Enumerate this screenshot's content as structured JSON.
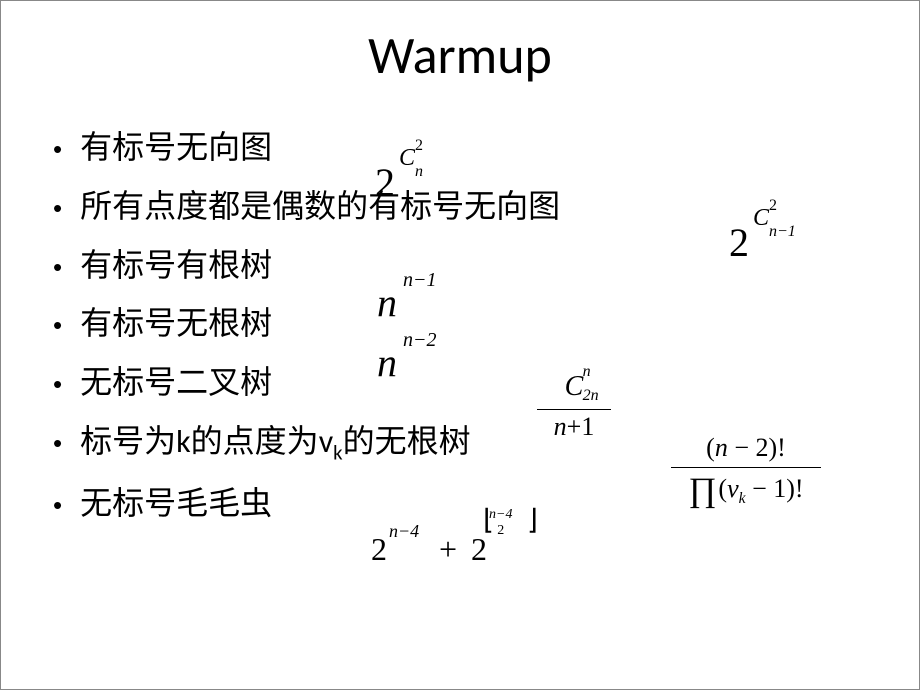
{
  "slide": {
    "title": "Warmup",
    "bullets": [
      {
        "text": "有标号无向图"
      },
      {
        "text": "所有点度都是偶数的有标号无向图"
      },
      {
        "text": "有标号有根树"
      },
      {
        "text": "有标号无根树"
      },
      {
        "text": "无标号二叉树"
      },
      {
        "text_prefix": "标号为",
        "k": "k",
        "text_mid": "的点度为",
        "v": "v",
        "vk_sub": "k",
        "text_suffix": "的无根树"
      },
      {
        "text": "无标号毛毛虫"
      }
    ],
    "formulas": {
      "f1": {
        "base": "2",
        "sup_sym": "C",
        "sub": "n",
        "sup": "2"
      },
      "f2": {
        "base": "2",
        "sup_sym": "C",
        "sub": "n−1",
        "sup": "2"
      },
      "f3": {
        "base": "n",
        "exp": "n−1"
      },
      "f4": {
        "base": "n",
        "exp": "n−2"
      },
      "f5": {
        "num_sym": "C",
        "num_sub": "2n",
        "num_sup": "n",
        "den": "n",
        "den_plus": "+",
        "den_one": "1"
      },
      "f6": {
        "num_l": "(",
        "num_n": "n",
        "num_m": "−",
        "num_2": "2",
        "num_r": ")!",
        "den_prod": "∏",
        "den_l": "(",
        "den_v": "v",
        "den_k": "k",
        "den_m": "−",
        "den_1": "1",
        "den_r": ")!"
      },
      "f7": {
        "b1": "2",
        "e1": "n−4",
        "plus": "+",
        "b2": "2",
        "fl_num": "n−4",
        "fl_den": "2",
        "floor_l": "⌊",
        "floor_r": "⌋"
      }
    },
    "colors": {
      "background": "#ffffff",
      "text": "#000000"
    }
  }
}
